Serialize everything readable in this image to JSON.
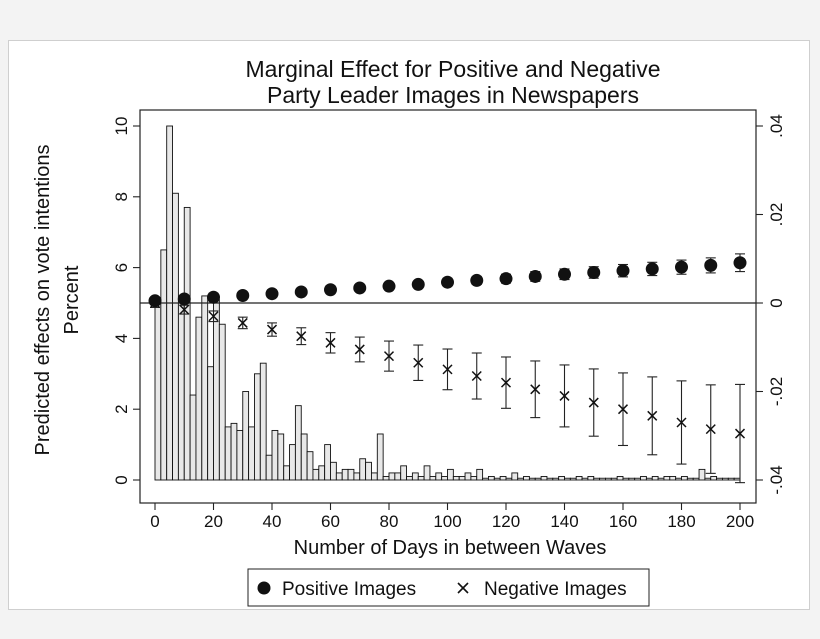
{
  "chart_data": {
    "type": "bar",
    "title_lines": [
      "Marginal Effect for Positive and Negative",
      "Party Leader Images in Newspapers"
    ],
    "xlabel": "Number of Days in between Waves",
    "ylabel_left": "Predicted effects on vote intentions",
    "ylabel_left_2": "Percent",
    "xlim": [
      0,
      200
    ],
    "ylim_left": [
      0,
      10
    ],
    "ylim_right": [
      -0.04,
      0.04
    ],
    "x_ticks": [
      "0",
      "20",
      "40",
      "60",
      "80",
      "100",
      "120",
      "140",
      "160",
      "180",
      "200"
    ],
    "y_left_ticks": [
      "0",
      "2",
      "4",
      "6",
      "8",
      "10"
    ],
    "y_right_ticks": [
      ".04",
      ".02",
      "0",
      "-.02",
      "-.04"
    ],
    "reference_line_right": 0,
    "histogram": {
      "bin_width": 2,
      "values": [
        5.1,
        6.5,
        10.0,
        8.1,
        5.0,
        7.7,
        2.4,
        4.6,
        5.2,
        3.2,
        5.1,
        4.4,
        1.5,
        1.6,
        1.4,
        2.5,
        1.5,
        3.0,
        3.3,
        0.7,
        1.4,
        1.3,
        0.4,
        1.0,
        2.1,
        1.3,
        0.8,
        0.3,
        0.4,
        1.0,
        0.5,
        0.2,
        0.3,
        0.3,
        0.2,
        0.6,
        0.5,
        0.2,
        1.3,
        0.1,
        0.2,
        0.2,
        0.4,
        0.1,
        0.2,
        0.1,
        0.4,
        0.1,
        0.2,
        0.1,
        0.3,
        0.1,
        0.1,
        0.2,
        0.1,
        0.3,
        0.05,
        0.1,
        0.05,
        0.1,
        0.05,
        0.2,
        0.05,
        0.1,
        0.05,
        0.05,
        0.1,
        0.05,
        0.05,
        0.1,
        0.05,
        0.05,
        0.1,
        0.05,
        0.1,
        0.05,
        0.05,
        0.05,
        0.05,
        0.1,
        0.05,
        0.05,
        0.05,
        0.1,
        0.05,
        0.1,
        0.05,
        0.1,
        0.1,
        0.05,
        0.1,
        0.05,
        0.05,
        0.3,
        0.05,
        0.1,
        0.05,
        0.05,
        0.05,
        0.05
      ]
    },
    "series": [
      {
        "name": "Positive Images",
        "marker": "circle",
        "x": [
          0,
          10,
          20,
          30,
          40,
          50,
          60,
          70,
          80,
          90,
          100,
          110,
          120,
          130,
          140,
          150,
          160,
          170,
          180,
          190,
          200
        ],
        "y": [
          0.0005,
          0.0009,
          0.0013,
          0.0017,
          0.0021,
          0.0025,
          0.003,
          0.0034,
          0.0038,
          0.0042,
          0.0047,
          0.0051,
          0.0055,
          0.006,
          0.0065,
          0.0069,
          0.0073,
          0.0077,
          0.0081,
          0.0085,
          0.0091
        ],
        "ci_low": [
          -0.0003,
          0.0002,
          0.0008,
          0.0012,
          0.0016,
          0.002,
          0.0024,
          0.0028,
          0.0032,
          0.0036,
          0.0039,
          0.0042,
          0.0045,
          0.0049,
          0.0053,
          0.0056,
          0.0059,
          0.0062,
          0.0065,
          0.0068,
          0.0071
        ],
        "ci_high": [
          0.0013,
          0.0016,
          0.0018,
          0.0022,
          0.0026,
          0.003,
          0.0036,
          0.004,
          0.0044,
          0.0048,
          0.0055,
          0.006,
          0.0065,
          0.0071,
          0.0077,
          0.0082,
          0.0087,
          0.0092,
          0.0097,
          0.0102,
          0.0111
        ]
      },
      {
        "name": "Negative Images",
        "marker": "x",
        "x": [
          0,
          10,
          20,
          30,
          40,
          50,
          60,
          70,
          80,
          90,
          100,
          110,
          120,
          130,
          140,
          150,
          160,
          170,
          180,
          190,
          200
        ],
        "y": [
          0.0,
          -0.0015,
          -0.003,
          -0.0045,
          -0.006,
          -0.0075,
          -0.009,
          -0.0105,
          -0.012,
          -0.0135,
          -0.015,
          -0.0165,
          -0.018,
          -0.0195,
          -0.021,
          -0.0225,
          -0.024,
          -0.0255,
          -0.027,
          -0.0285,
          -0.0295
        ],
        "ci_low": [
          -0.001,
          -0.0025,
          -0.0042,
          -0.0058,
          -0.0075,
          -0.0094,
          -0.0113,
          -0.0133,
          -0.0154,
          -0.0175,
          -0.0196,
          -0.0217,
          -0.0238,
          -0.0259,
          -0.028,
          -0.0301,
          -0.0322,
          -0.0343,
          -0.0364,
          -0.0385,
          -0.0406
        ],
        "ci_high": [
          0.001,
          -0.0005,
          -0.0018,
          -0.0032,
          -0.0045,
          -0.0056,
          -0.0067,
          -0.0077,
          -0.0086,
          -0.0095,
          -0.0104,
          -0.0113,
          -0.0122,
          -0.0131,
          -0.014,
          -0.0149,
          -0.0158,
          -0.0167,
          -0.0176,
          -0.0185,
          -0.0184
        ]
      }
    ]
  }
}
